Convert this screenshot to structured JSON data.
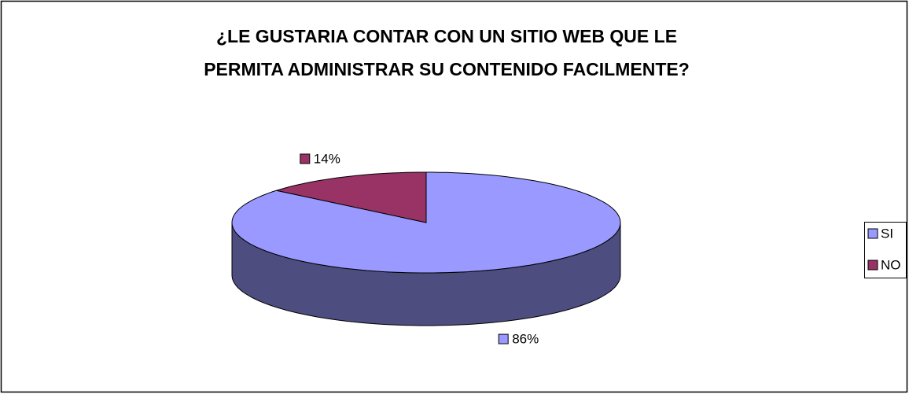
{
  "chart_data": {
    "type": "pie",
    "style": "3d",
    "title": [
      "¿LE GUSTARIA CONTAR CON UN SITIO WEB QUE LE",
      "PERMITA ADMINISTRAR SU CONTENIDO FACILMENTE?"
    ],
    "categories": [
      "SI",
      "NO"
    ],
    "values": [
      86,
      14
    ],
    "value_labels": [
      "86%",
      "14%"
    ],
    "colors": [
      "#9999ff",
      "#993366"
    ],
    "legend": "right"
  }
}
